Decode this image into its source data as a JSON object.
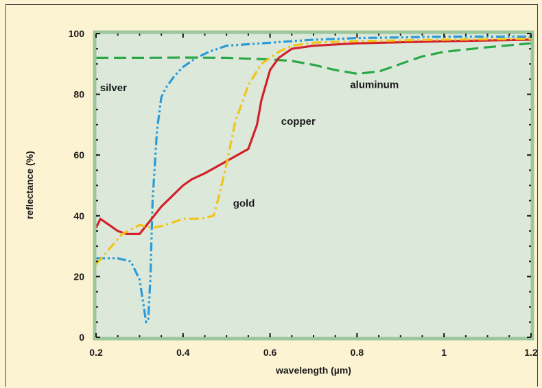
{
  "chart_data": {
    "type": "line",
    "title": "",
    "xlabel": "wavelength (µm)",
    "ylabel": "reflectance (%)",
    "xlim": [
      0.2,
      1.2
    ],
    "ylim": [
      0,
      100
    ],
    "x_ticks": [
      0.2,
      0.4,
      0.6,
      0.8,
      1.0,
      1.2
    ],
    "x_tick_labels": [
      "0.2",
      "0.4",
      "0.6",
      "0.8",
      "1",
      "1.2"
    ],
    "y_ticks": [
      0,
      20,
      40,
      60,
      80,
      100
    ],
    "y_tick_labels": [
      "0",
      "20",
      "40",
      "60",
      "80",
      "100"
    ],
    "grid": false,
    "colors": {
      "page_bg": "#fcf3d2",
      "plot_bg": "#dbe8da",
      "plot_border": "#9cc69c",
      "silver": "#2a9ad8",
      "aluminum": "#2aa845",
      "copper": "#d4202a",
      "gold": "#f2c318"
    },
    "series": [
      {
        "name": "silver",
        "line_style": "dash-dot-dot",
        "color": "#2a9ad8",
        "x": [
          0.2,
          0.25,
          0.28,
          0.3,
          0.31,
          0.315,
          0.32,
          0.325,
          0.33,
          0.34,
          0.35,
          0.36,
          0.38,
          0.4,
          0.43,
          0.46,
          0.5,
          0.6,
          0.7,
          0.8,
          1.0,
          1.2
        ],
        "y": [
          26,
          26,
          25,
          19,
          10,
          5,
          6,
          20,
          45,
          68,
          79,
          82,
          86,
          89,
          92,
          94,
          96,
          97,
          98,
          98.5,
          99,
          99
        ]
      },
      {
        "name": "aluminum",
        "line_style": "dashed",
        "color": "#2aa845",
        "x": [
          0.2,
          0.3,
          0.4,
          0.5,
          0.6,
          0.65,
          0.7,
          0.75,
          0.8,
          0.85,
          0.9,
          0.95,
          1.0,
          1.1,
          1.2
        ],
        "y": [
          92,
          92,
          92.1,
          92,
          91.5,
          91,
          89.7,
          88,
          86.8,
          87.5,
          90,
          92.5,
          94,
          95.5,
          96.8
        ]
      },
      {
        "name": "copper",
        "line_style": "solid",
        "color": "#d4202a",
        "x": [
          0.2,
          0.21,
          0.23,
          0.25,
          0.27,
          0.3,
          0.35,
          0.4,
          0.42,
          0.45,
          0.5,
          0.55,
          0.57,
          0.58,
          0.6,
          0.62,
          0.65,
          0.7,
          0.8,
          1.0,
          1.2
        ],
        "y": [
          36,
          39,
          37,
          35,
          34,
          34,
          43,
          50,
          52,
          54,
          58,
          62,
          70,
          78,
          88,
          92,
          95,
          96,
          96.8,
          97.5,
          98
        ]
      },
      {
        "name": "gold",
        "line_style": "dash-dot",
        "color": "#f2c318",
        "x": [
          0.2,
          0.23,
          0.26,
          0.3,
          0.33,
          0.36,
          0.4,
          0.44,
          0.47,
          0.48,
          0.5,
          0.52,
          0.55,
          0.58,
          0.62,
          0.65,
          0.7,
          0.8,
          1.0,
          1.2
        ],
        "y": [
          24,
          29,
          34,
          37,
          36,
          37,
          39,
          39,
          40,
          45,
          57,
          71,
          83,
          90,
          94,
          96,
          97,
          97.5,
          98,
          98.3
        ]
      }
    ],
    "annotations": [
      {
        "text": "silver",
        "x": 0.24,
        "y": 81
      },
      {
        "text": "aluminum",
        "x": 0.84,
        "y": 82
      },
      {
        "text": "copper",
        "x": 0.665,
        "y": 70
      },
      {
        "text": "gold",
        "x": 0.54,
        "y": 43
      }
    ]
  }
}
